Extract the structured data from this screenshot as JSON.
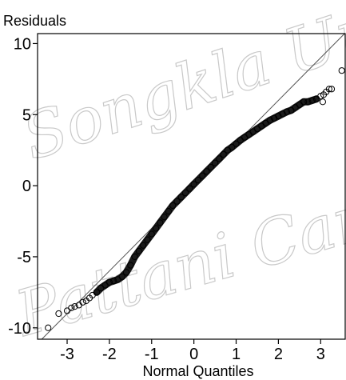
{
  "chart_data": {
    "type": "scatter",
    "ylabel": "Residuals",
    "xlabel": "Normal Quantiles",
    "xlim": [
      -3.7,
      3.6
    ],
    "ylim": [
      -10.8,
      10.7
    ],
    "xticks": [
      -3,
      -2,
      -1,
      0,
      1,
      2,
      3
    ],
    "yticks": [
      -10,
      -5,
      0,
      5,
      10
    ],
    "xtick_labels": [
      "-3",
      "-2",
      "-1",
      "0",
      "1",
      "2",
      "3"
    ],
    "ytick_labels": [
      "-10",
      "-5",
      "0",
      "5",
      "10"
    ],
    "grid": false,
    "reference_line": {
      "slope": 3.0,
      "intercept": 0.0
    },
    "series": [
      {
        "marker": "open-circle",
        "points": [
          [
            -3.45,
            -10.0
          ],
          [
            -3.2,
            -9.0
          ],
          [
            -3.0,
            -8.8
          ],
          [
            -2.9,
            -8.6
          ],
          [
            -2.82,
            -8.5
          ],
          [
            -2.72,
            -8.4
          ],
          [
            -2.63,
            -8.2
          ],
          [
            -2.55,
            -8.1
          ],
          [
            -2.47,
            -7.9
          ],
          [
            -2.4,
            -7.7
          ],
          [
            -2.3,
            -7.5
          ],
          [
            -2.2,
            -7.2
          ],
          [
            -2.1,
            -7.0
          ],
          [
            -2.0,
            -6.8
          ],
          [
            -1.9,
            -6.7
          ],
          [
            -1.8,
            -6.6
          ],
          [
            -1.7,
            -6.4
          ],
          [
            -1.6,
            -6.1
          ],
          [
            -1.5,
            -5.6
          ],
          [
            -1.4,
            -5.0
          ],
          [
            -1.3,
            -4.6
          ],
          [
            -1.2,
            -4.2
          ],
          [
            -1.1,
            -3.8
          ],
          [
            -1.0,
            -3.4
          ],
          [
            -0.9,
            -3.0
          ],
          [
            -0.8,
            -2.6
          ],
          [
            -0.7,
            -2.2
          ],
          [
            -0.6,
            -1.8
          ],
          [
            -0.5,
            -1.4
          ],
          [
            -0.4,
            -1.1
          ],
          [
            -0.3,
            -0.8
          ],
          [
            -0.2,
            -0.5
          ],
          [
            -0.1,
            -0.2
          ],
          [
            0.0,
            0.1
          ],
          [
            0.1,
            0.4
          ],
          [
            0.2,
            0.7
          ],
          [
            0.3,
            1.0
          ],
          [
            0.4,
            1.3
          ],
          [
            0.5,
            1.6
          ],
          [
            0.6,
            1.9
          ],
          [
            0.7,
            2.2
          ],
          [
            0.8,
            2.5
          ],
          [
            0.9,
            2.7
          ],
          [
            1.0,
            2.95
          ],
          [
            1.1,
            3.2
          ],
          [
            1.2,
            3.4
          ],
          [
            1.3,
            3.6
          ],
          [
            1.4,
            3.8
          ],
          [
            1.5,
            4.0
          ],
          [
            1.6,
            4.2
          ],
          [
            1.7,
            4.4
          ],
          [
            1.8,
            4.6
          ],
          [
            1.9,
            4.75
          ],
          [
            2.0,
            4.9
          ],
          [
            2.1,
            5.05
          ],
          [
            2.2,
            5.2
          ],
          [
            2.3,
            5.3
          ],
          [
            2.4,
            5.5
          ],
          [
            2.5,
            5.7
          ],
          [
            2.6,
            5.9
          ],
          [
            2.7,
            5.9
          ],
          [
            2.8,
            6.0
          ],
          [
            2.9,
            6.1
          ],
          [
            3.0,
            6.3
          ],
          [
            3.07,
            6.4
          ],
          [
            3.13,
            6.6
          ],
          [
            3.2,
            6.8
          ],
          [
            3.26,
            6.8
          ],
          [
            3.05,
            5.9
          ],
          [
            3.5,
            8.1
          ]
        ]
      }
    ],
    "watermark": [
      "Songkla Un",
      "Pattani Cam"
    ]
  }
}
